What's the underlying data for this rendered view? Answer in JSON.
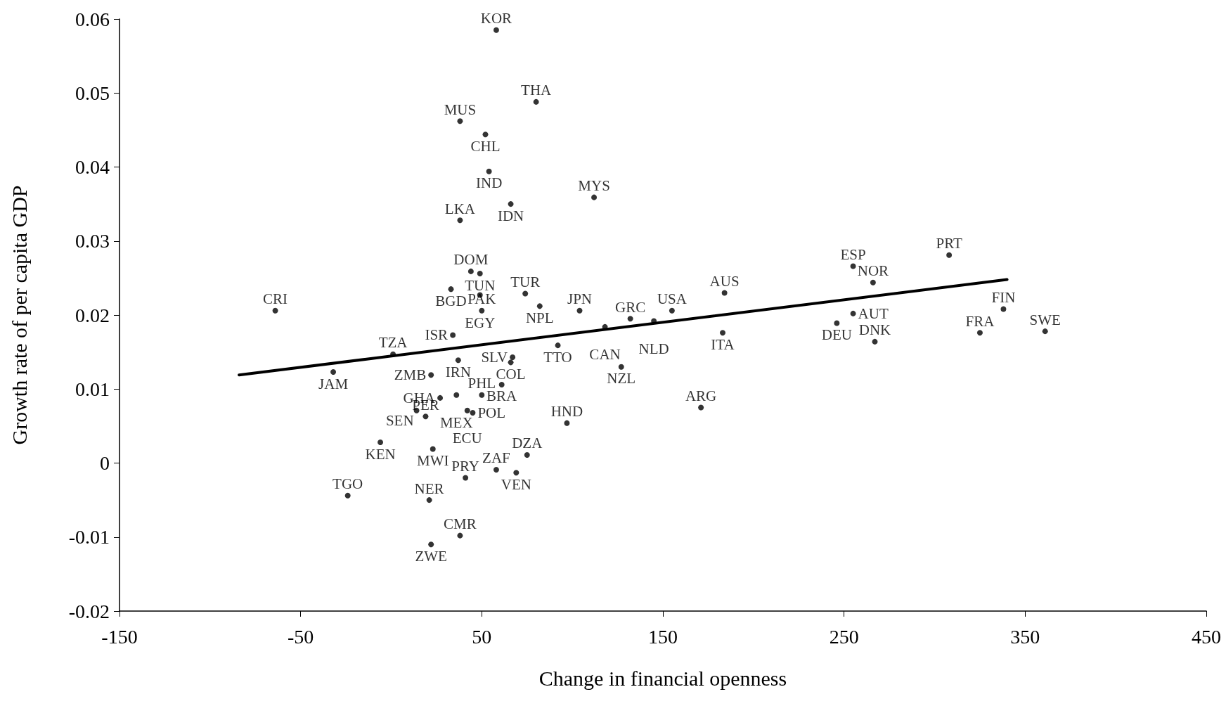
{
  "chart_data": {
    "type": "scatter",
    "xlabel": "Change in financial openness",
    "ylabel": "Growth rate of per capita GDP",
    "xlim": [
      -150,
      450
    ],
    "xticks": [
      -150,
      -50,
      50,
      150,
      250,
      350,
      450
    ],
    "ylim": [
      -0.02,
      0.06
    ],
    "yticks": [
      -0.02,
      -0.01,
      0,
      0.01,
      0.02,
      0.03,
      0.04,
      0.05,
      0.06
    ],
    "grid": false,
    "marker": "circle",
    "series": [
      {
        "color": "#000000",
        "x": [
          58,
          80,
          38,
          52,
          54,
          112,
          66,
          38,
          255,
          308,
          44,
          49,
          33,
          49,
          74,
          266,
          184,
          82,
          -64,
          50,
          104,
          338,
          155,
          255,
          132,
          145,
          118,
          246,
          183,
          325,
          361,
          267,
          34,
          92,
          1,
          67,
          37,
          66,
          127,
          -32,
          22,
          61,
          27,
          36,
          50,
          171,
          14,
          19,
          42,
          45,
          97,
          -6,
          23,
          75,
          58,
          69,
          41,
          -24,
          21,
          38,
          22
        ],
        "values": [
          0.0585,
          0.0488,
          0.0462,
          0.0444,
          0.0394,
          0.0359,
          0.035,
          0.0328,
          0.0266,
          0.0281,
          0.0259,
          0.0256,
          0.0235,
          0.0227,
          0.0229,
          0.0244,
          0.023,
          0.0212,
          0.0206,
          0.0206,
          0.0206,
          0.0208,
          0.0206,
          0.0202,
          0.0195,
          0.0192,
          0.0184,
          0.0189,
          0.0176,
          0.0176,
          0.0178,
          0.0164,
          0.0173,
          0.0159,
          0.0147,
          0.0143,
          0.0139,
          0.0136,
          0.013,
          0.0123,
          0.0119,
          0.0106,
          0.0088,
          0.0092,
          0.0092,
          0.0075,
          0.0071,
          0.0063,
          0.0071,
          0.0068,
          0.0054,
          0.0028,
          0.0019,
          0.0011,
          -0.0009,
          -0.0013,
          -0.002,
          -0.0044,
          -0.005,
          -0.0098,
          -0.011
        ],
        "value_labels": [
          "KOR",
          "THA",
          "MUS",
          "CHL",
          "IND",
          "MYS",
          "IDN",
          "LKA",
          "ESP",
          "PRT",
          "DOM",
          "TUN",
          "BGD",
          "EGY",
          "TUR",
          "NOR",
          "AUS",
          "NPL",
          "CRI",
          "PAK",
          "JPN",
          "FIN",
          "USA",
          "AUT",
          "GRC",
          "NLD",
          "CAN",
          "DEU",
          "ITA",
          "FRA",
          "SWE",
          "DNK",
          "ISR",
          "TTO",
          "TZA",
          "SLV",
          "IRN",
          "COL",
          "NZL",
          "JAM",
          "ZMB",
          "BRA",
          "GHA",
          "MEX",
          "PHL",
          "ARG",
          "SEN",
          "PER",
          "ECU",
          "POL",
          "HND",
          "KEN",
          "MWI",
          "DZA",
          "ZAF",
          "VEN",
          "PRY",
          "TGO",
          "NER",
          "CMR",
          "ZWE"
        ]
      },
      {
        "type": "line",
        "color": "#000000",
        "marker": "none",
        "line_style": "solid",
        "x": [
          -84,
          340
        ],
        "values": [
          0.0119,
          0.0248
        ]
      }
    ]
  }
}
